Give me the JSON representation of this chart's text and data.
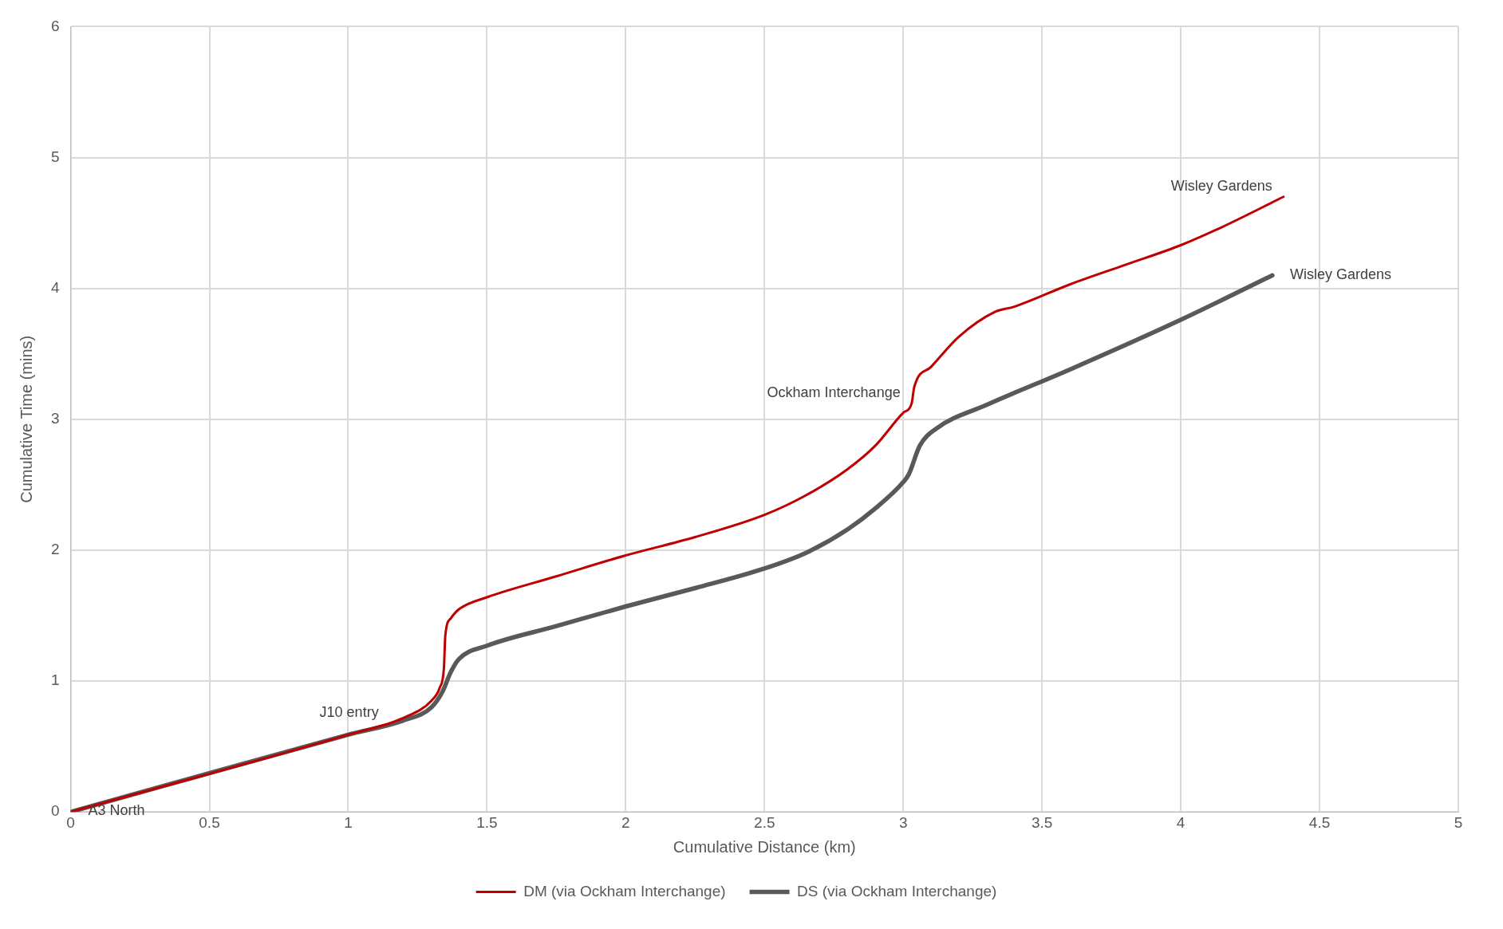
{
  "chart_data": {
    "type": "line",
    "xlabel": "Cumulative Distance (km)",
    "ylabel": "Cumulative Time (mins)",
    "xlim": [
      0,
      5
    ],
    "xticks": [
      0,
      0.5,
      1,
      1.5,
      2,
      2.5,
      3,
      3.5,
      4,
      4.5,
      5
    ],
    "ylim": [
      0,
      6
    ],
    "yticks": [
      0,
      1,
      2,
      3,
      4,
      5,
      6
    ],
    "grid": true,
    "legend": "bottom",
    "marker": "none",
    "line_style": "solid",
    "series": [
      {
        "name": "DM (via Ockham Interchange)",
        "color": "#c00000",
        "x": [
          0,
          1,
          1.2,
          1.3,
          1.33,
          1.345,
          1.35,
          1.37,
          1.4,
          1.5,
          1.75,
          2,
          2.25,
          2.5,
          2.65,
          2.8,
          2.9,
          3.0,
          3.03,
          3.04,
          3.1,
          3.2,
          3.33,
          3.4,
          3.6,
          3.8,
          4.0,
          4.15,
          4.37
        ],
        "values": [
          0,
          0.59,
          0.72,
          0.85,
          0.95,
          1.1,
          1.35,
          1.48,
          1.55,
          1.64,
          1.8,
          1.96,
          2.1,
          2.27,
          2.42,
          2.62,
          2.8,
          3.05,
          3.12,
          3.25,
          3.4,
          3.63,
          3.82,
          3.86,
          4.03,
          4.18,
          4.33,
          4.47,
          4.7
        ]
      },
      {
        "name": "DS (via Ockham Interchange)",
        "color": "#595959",
        "x": [
          0,
          1,
          1.2,
          1.3,
          1.34,
          1.37,
          1.4,
          1.5,
          1.75,
          2,
          2.25,
          2.5,
          2.65,
          2.8,
          2.9,
          3.0,
          3.02,
          3.06,
          3.12,
          3.3,
          3.6,
          4.0,
          4.33
        ],
        "values": [
          0,
          0.59,
          0.7,
          0.8,
          0.92,
          1.07,
          1.17,
          1.27,
          1.42,
          1.57,
          1.71,
          1.86,
          1.98,
          2.16,
          2.32,
          2.52,
          2.58,
          2.8,
          2.93,
          3.11,
          3.38,
          3.76,
          4.1
        ]
      }
    ],
    "annotations": [
      {
        "text": "A3 North",
        "x": 0,
        "y": 0
      },
      {
        "text": "J10 entry",
        "x": 1.15,
        "y": 0.68
      },
      {
        "text": "Ockham Interchange",
        "x": 3.03,
        "y": 3.12
      },
      {
        "text": "Wisley Gardens",
        "x": 4.37,
        "y": 4.7
      },
      {
        "text": "Wisley Gardens",
        "x": 4.33,
        "y": 4.1
      }
    ]
  }
}
